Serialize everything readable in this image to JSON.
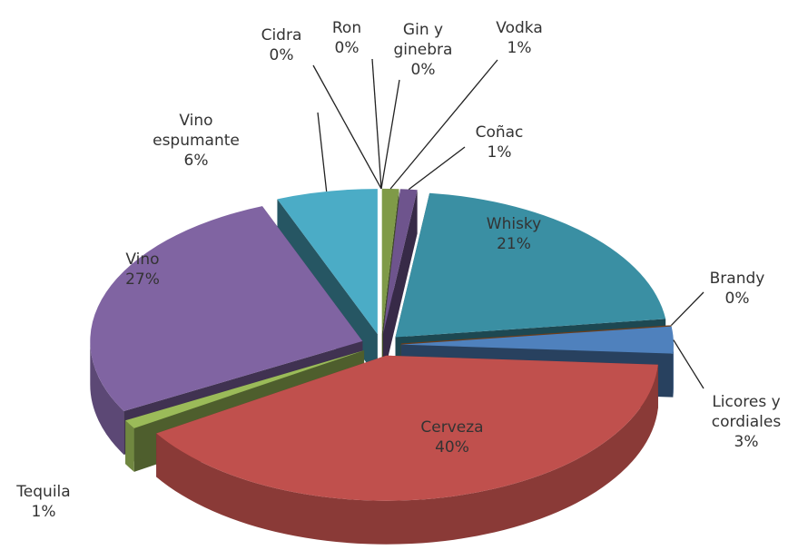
{
  "chart_data": {
    "type": "pie3d",
    "categories": [
      "Cidra",
      "Ron",
      "Gin y ginebra",
      "Vodka",
      "Coñac",
      "Whisky",
      "Brandy",
      "Licores y cordiales",
      "Cerveza",
      "Tequila",
      "Vino",
      "Vino espumante"
    ],
    "values": [
      0,
      0,
      0,
      1,
      1,
      21,
      0,
      3,
      40,
      1,
      27,
      6
    ],
    "value_labels": [
      "0%",
      "0%",
      "0%",
      "1%",
      "1%",
      "21%",
      "0%",
      "3%",
      "40%",
      "1%",
      "27%",
      "6%"
    ],
    "colors": [
      "#f79646",
      "#c0504d",
      "#9bbb59",
      "#7f9a48",
      "#6e548d",
      "#3a8fa3",
      "#e07b30",
      "#4f81bd",
      "#c0504d",
      "#9bbb59",
      "#8064a2",
      "#4bacc6"
    ]
  }
}
